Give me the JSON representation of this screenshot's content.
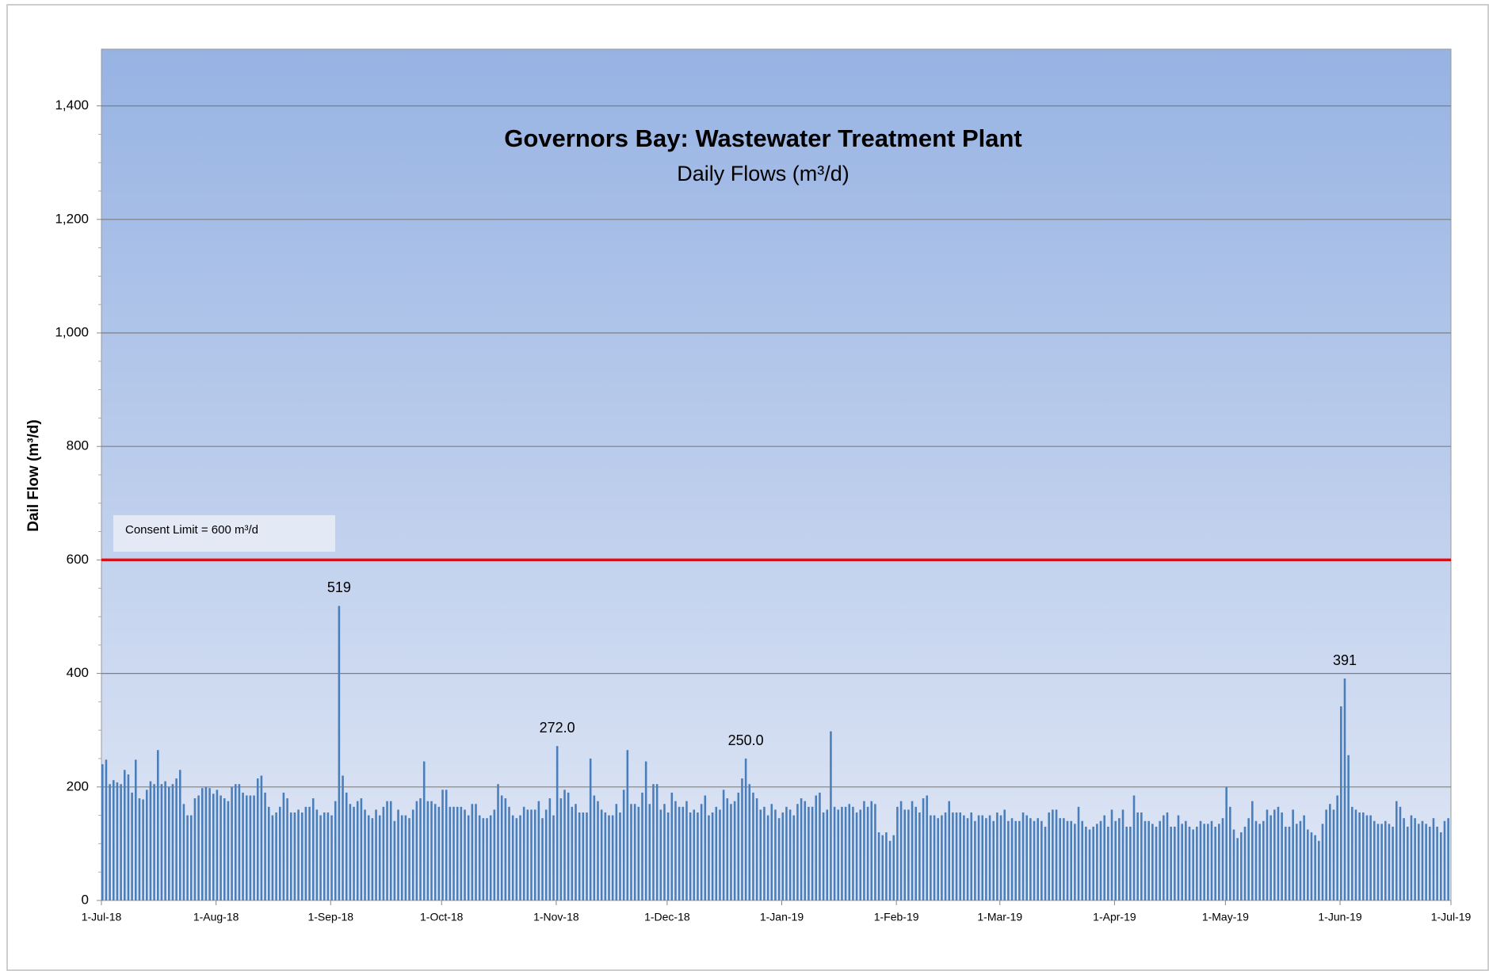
{
  "chart_data": {
    "type": "bar",
    "title": "Governors Bay: Wastewater Treatment Plant",
    "subtitle": "Daily Flows (m³/d)",
    "y_label": "Dail Flow (m³/d)",
    "color": "#4a7ebb",
    "grid": true,
    "ylim": [
      0,
      1500
    ],
    "yticks": [
      0,
      200,
      400,
      600,
      800,
      {
        "value": 1000,
        "label": "1,000"
      },
      {
        "value": 1200,
        "label": "1,200"
      },
      {
        "value": 1400,
        "label": "1,400"
      }
    ],
    "xlim": [
      "2018-07-01",
      "2019-07-01"
    ],
    "xticks": [
      {
        "value": "2018-07-01",
        "label": "1-Jul-18"
      },
      {
        "value": "2018-08-01",
        "label": "1-Aug-18"
      },
      {
        "value": "2018-09-01",
        "label": "1-Sep-18"
      },
      {
        "value": "2018-10-01",
        "label": "1-Oct-18"
      },
      {
        "value": "2018-11-01",
        "label": "1-Nov-18"
      },
      {
        "value": "2018-12-01",
        "label": "1-Dec-18"
      },
      {
        "value": "2019-01-01",
        "label": "1-Jan-19"
      },
      {
        "value": "2019-02-01",
        "label": "1-Feb-19"
      },
      {
        "value": "2019-03-01",
        "label": "1-Mar-19"
      },
      {
        "value": "2019-04-01",
        "label": "1-Apr-19"
      },
      {
        "value": "2019-05-01",
        "label": "1-May-19"
      },
      {
        "value": "2019-06-01",
        "label": "1-Jun-19"
      },
      {
        "value": "2019-07-01",
        "label": "1-Jul-19"
      }
    ],
    "reference_line": {
      "value": 600,
      "label": "Consent Limit = 600 m³/d",
      "color": "#ff0000"
    },
    "data_labels": [
      {
        "x": "2018-09-03",
        "label": "519"
      },
      {
        "x": "2018-11-01",
        "label": "272.0"
      },
      {
        "x": "2018-12-22",
        "label": "250.0"
      },
      {
        "x": "2019-06-02",
        "label": "391"
      }
    ],
    "x": [
      "2018-07-01",
      "2018-07-02",
      "2018-07-03",
      "2018-07-04",
      "2018-07-05",
      "2018-07-06",
      "2018-07-07",
      "2018-07-08",
      "2018-07-09",
      "2018-07-10",
      "2018-07-11",
      "2018-07-12",
      "2018-07-13",
      "2018-07-14",
      "2018-07-15",
      "2018-07-16",
      "2018-07-17",
      "2018-07-18",
      "2018-07-19",
      "2018-07-20",
      "2018-07-21",
      "2018-07-22",
      "2018-07-23",
      "2018-07-24",
      "2018-07-25",
      "2018-07-26",
      "2018-07-27",
      "2018-07-28",
      "2018-07-29",
      "2018-07-30",
      "2018-07-31",
      "2018-08-01",
      "2018-08-02",
      "2018-08-03",
      "2018-08-04",
      "2018-08-05",
      "2018-08-06",
      "2018-08-07",
      "2018-08-08",
      "2018-08-09",
      "2018-08-10",
      "2018-08-11",
      "2018-08-12",
      "2018-08-13",
      "2018-08-14",
      "2018-08-15",
      "2018-08-16",
      "2018-08-17",
      "2018-08-18",
      "2018-08-19",
      "2018-08-20",
      "2018-08-21",
      "2018-08-22",
      "2018-08-23",
      "2018-08-24",
      "2018-08-25",
      "2018-08-26",
      "2018-08-27",
      "2018-08-28",
      "2018-08-29",
      "2018-08-30",
      "2018-08-31",
      "2018-09-01",
      "2018-09-02",
      "2018-09-03",
      "2018-09-04",
      "2018-09-05",
      "2018-09-06",
      "2018-09-07",
      "2018-09-08",
      "2018-09-09",
      "2018-09-10",
      "2018-09-11",
      "2018-09-12",
      "2018-09-13",
      "2018-09-14",
      "2018-09-15",
      "2018-09-16",
      "2018-09-17",
      "2018-09-18",
      "2018-09-19",
      "2018-09-20",
      "2018-09-21",
      "2018-09-22",
      "2018-09-23",
      "2018-09-24",
      "2018-09-25",
      "2018-09-26",
      "2018-09-27",
      "2018-09-28",
      "2018-09-29",
      "2018-09-30",
      "2018-10-01",
      "2018-10-02",
      "2018-10-03",
      "2018-10-04",
      "2018-10-05",
      "2018-10-06",
      "2018-10-07",
      "2018-10-08",
      "2018-10-09",
      "2018-10-10",
      "2018-10-11",
      "2018-10-12",
      "2018-10-13",
      "2018-10-14",
      "2018-10-15",
      "2018-10-16",
      "2018-10-17",
      "2018-10-18",
      "2018-10-19",
      "2018-10-20",
      "2018-10-21",
      "2018-10-22",
      "2018-10-23",
      "2018-10-24",
      "2018-10-25",
      "2018-10-26",
      "2018-10-27",
      "2018-10-28",
      "2018-10-29",
      "2018-10-30",
      "2018-10-31",
      "2018-11-01",
      "2018-11-02",
      "2018-11-03",
      "2018-11-04",
      "2018-11-05",
      "2018-11-06",
      "2018-11-07",
      "2018-11-08",
      "2018-11-09",
      "2018-11-10",
      "2018-11-11",
      "2018-11-12",
      "2018-11-13",
      "2018-11-14",
      "2018-11-15",
      "2018-11-16",
      "2018-11-17",
      "2018-11-18",
      "2018-11-19",
      "2018-11-20",
      "2018-11-21",
      "2018-11-22",
      "2018-11-23",
      "2018-11-24",
      "2018-11-25",
      "2018-11-26",
      "2018-11-27",
      "2018-11-28",
      "2018-11-29",
      "2018-11-30",
      "2018-12-01",
      "2018-12-02",
      "2018-12-03",
      "2018-12-04",
      "2018-12-05",
      "2018-12-06",
      "2018-12-07",
      "2018-12-08",
      "2018-12-09",
      "2018-12-10",
      "2018-12-11",
      "2018-12-12",
      "2018-12-13",
      "2018-12-14",
      "2018-12-15",
      "2018-12-16",
      "2018-12-17",
      "2018-12-18",
      "2018-12-19",
      "2018-12-20",
      "2018-12-21",
      "2018-12-22",
      "2018-12-23",
      "2018-12-24",
      "2018-12-25",
      "2018-12-26",
      "2018-12-27",
      "2018-12-28",
      "2018-12-29",
      "2018-12-30",
      "2018-12-31",
      "2019-01-01",
      "2019-01-02",
      "2019-01-03",
      "2019-01-04",
      "2019-01-05",
      "2019-01-06",
      "2019-01-07",
      "2019-01-08",
      "2019-01-09",
      "2019-01-10",
      "2019-01-11",
      "2019-01-12",
      "2019-01-13",
      "2019-01-14",
      "2019-01-15",
      "2019-01-16",
      "2019-01-17",
      "2019-01-18",
      "2019-01-19",
      "2019-01-20",
      "2019-01-21",
      "2019-01-22",
      "2019-01-23",
      "2019-01-24",
      "2019-01-25",
      "2019-01-26",
      "2019-01-27",
      "2019-01-28",
      "2019-01-29",
      "2019-01-30",
      "2019-01-31",
      "2019-02-01",
      "2019-02-02",
      "2019-02-03",
      "2019-02-04",
      "2019-02-05",
      "2019-02-06",
      "2019-02-07",
      "2019-02-08",
      "2019-02-09",
      "2019-02-10",
      "2019-02-11",
      "2019-02-12",
      "2019-02-13",
      "2019-02-14",
      "2019-02-15",
      "2019-02-16",
      "2019-02-17",
      "2019-02-18",
      "2019-02-19",
      "2019-02-20",
      "2019-02-21",
      "2019-02-22",
      "2019-02-23",
      "2019-02-24",
      "2019-02-25",
      "2019-02-26",
      "2019-02-27",
      "2019-02-28",
      "2019-03-01",
      "2019-03-02",
      "2019-03-03",
      "2019-03-04",
      "2019-03-05",
      "2019-03-06",
      "2019-03-07",
      "2019-03-08",
      "2019-03-09",
      "2019-03-10",
      "2019-03-11",
      "2019-03-12",
      "2019-03-13",
      "2019-03-14",
      "2019-03-15",
      "2019-03-16",
      "2019-03-17",
      "2019-03-18",
      "2019-03-19",
      "2019-03-20",
      "2019-03-21",
      "2019-03-22",
      "2019-03-23",
      "2019-03-24",
      "2019-03-25",
      "2019-03-26",
      "2019-03-27",
      "2019-03-28",
      "2019-03-29",
      "2019-03-30",
      "2019-03-31",
      "2019-04-01",
      "2019-04-02",
      "2019-04-03",
      "2019-04-04",
      "2019-04-05",
      "2019-04-06",
      "2019-04-07",
      "2019-04-08",
      "2019-04-09",
      "2019-04-10",
      "2019-04-11",
      "2019-04-12",
      "2019-04-13",
      "2019-04-14",
      "2019-04-15",
      "2019-04-16",
      "2019-04-17",
      "2019-04-18",
      "2019-04-19",
      "2019-04-20",
      "2019-04-21",
      "2019-04-22",
      "2019-04-23",
      "2019-04-24",
      "2019-04-25",
      "2019-04-26",
      "2019-04-27",
      "2019-04-28",
      "2019-04-29",
      "2019-04-30",
      "2019-05-01",
      "2019-05-02",
      "2019-05-03",
      "2019-05-04",
      "2019-05-05",
      "2019-05-06",
      "2019-05-07",
      "2019-05-08",
      "2019-05-09",
      "2019-05-10",
      "2019-05-11",
      "2019-05-12",
      "2019-05-13",
      "2019-05-14",
      "2019-05-15",
      "2019-05-16",
      "2019-05-17",
      "2019-05-18",
      "2019-05-19",
      "2019-05-20",
      "2019-05-21",
      "2019-05-22",
      "2019-05-23",
      "2019-05-24",
      "2019-05-25",
      "2019-05-26",
      "2019-05-27",
      "2019-05-28",
      "2019-05-29",
      "2019-05-30",
      "2019-05-31",
      "2019-06-01",
      "2019-06-02",
      "2019-06-03",
      "2019-06-04",
      "2019-06-05",
      "2019-06-06",
      "2019-06-07",
      "2019-06-08",
      "2019-06-09",
      "2019-06-10",
      "2019-06-11",
      "2019-06-12",
      "2019-06-13",
      "2019-06-14",
      "2019-06-15",
      "2019-06-16",
      "2019-06-17",
      "2019-06-18",
      "2019-06-19",
      "2019-06-20",
      "2019-06-21",
      "2019-06-22",
      "2019-06-23",
      "2019-06-24",
      "2019-06-25",
      "2019-06-26",
      "2019-06-27",
      "2019-06-28",
      "2019-06-29",
      "2019-06-30"
    ],
    "values": [
      240,
      248,
      205,
      212,
      208,
      205,
      230,
      222,
      190,
      248,
      180,
      178,
      195,
      210,
      205,
      265,
      205,
      210,
      200,
      205,
      215,
      230,
      170,
      150,
      150,
      180,
      185,
      198,
      200,
      198,
      188,
      195,
      185,
      180,
      175,
      200,
      205,
      205,
      190,
      185,
      185,
      185,
      215,
      220,
      190,
      165,
      150,
      155,
      165,
      190,
      180,
      155,
      155,
      160,
      155,
      165,
      165,
      180,
      160,
      150,
      155,
      155,
      150,
      175,
      519,
      220,
      190,
      170,
      165,
      175,
      180,
      160,
      150,
      145,
      160,
      150,
      165,
      175,
      175,
      140,
      160,
      150,
      150,
      145,
      160,
      175,
      180,
      245,
      175,
      175,
      170,
      165,
      195,
      195,
      165,
      165,
      165,
      165,
      160,
      150,
      170,
      170,
      150,
      145,
      145,
      150,
      160,
      205,
      185,
      180,
      165,
      150,
      145,
      150,
      165,
      160,
      160,
      160,
      175,
      145,
      160,
      180,
      150,
      272,
      180,
      195,
      190,
      165,
      170,
      155,
      155,
      155,
      250,
      185,
      175,
      160,
      155,
      150,
      150,
      170,
      155,
      195,
      265,
      170,
      170,
      165,
      190,
      245,
      170,
      205,
      205,
      160,
      170,
      155,
      190,
      175,
      165,
      165,
      175,
      155,
      160,
      155,
      170,
      185,
      150,
      155,
      165,
      160,
      195,
      180,
      170,
      175,
      190,
      215,
      250,
      205,
      190,
      180,
      160,
      165,
      150,
      170,
      160,
      145,
      155,
      165,
      160,
      150,
      170,
      180,
      175,
      165,
      165,
      185,
      190,
      155,
      160,
      298,
      165,
      160,
      165,
      165,
      170,
      165,
      155,
      160,
      175,
      165,
      175,
      170,
      120,
      115,
      120,
      105,
      115,
      165,
      175,
      160,
      160,
      175,
      165,
      155,
      180,
      185,
      150,
      150,
      145,
      150,
      155,
      175,
      155,
      155,
      155,
      150,
      145,
      155,
      140,
      150,
      150,
      145,
      150,
      140,
      155,
      150,
      160,
      140,
      145,
      140,
      140,
      155,
      150,
      145,
      140,
      145,
      140,
      130,
      155,
      160,
      160,
      145,
      145,
      140,
      140,
      135,
      165,
      140,
      130,
      125,
      130,
      135,
      140,
      150,
      130,
      160,
      140,
      145,
      160,
      130,
      130,
      185,
      155,
      155,
      140,
      140,
      135,
      130,
      140,
      150,
      155,
      130,
      130,
      150,
      135,
      140,
      130,
      125,
      130,
      140,
      135,
      135,
      140,
      130,
      135,
      145,
      200,
      165,
      125,
      110,
      120,
      130,
      145,
      175,
      140,
      135,
      140,
      160,
      150,
      160,
      165,
      155,
      130,
      130,
      160,
      135,
      140,
      150,
      125,
      120,
      115,
      105,
      135,
      160,
      170,
      160,
      185,
      342,
      391,
      256,
      165,
      160,
      155,
      155,
      150,
      150,
      140,
      135,
      135,
      140,
      135,
      130,
      175,
      165,
      145,
      130,
      150,
      145,
      135,
      140,
      135,
      130,
      145,
      130,
      120,
      140,
      145
    ]
  }
}
